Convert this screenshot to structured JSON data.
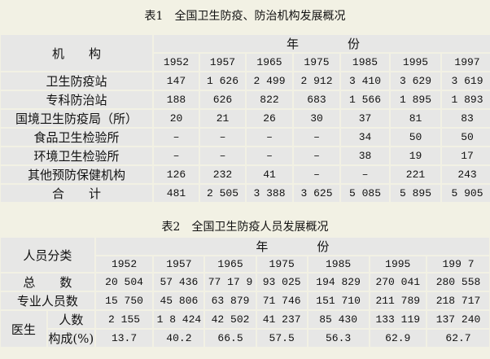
{
  "table1": {
    "title": "表1　全国卫生防疫、防治机构发展概况",
    "row_header": "机　　构",
    "year_header": "年　　　　份",
    "years": [
      "1952",
      "1957",
      "1965",
      "1975",
      "1985",
      "1995",
      "1997"
    ],
    "rows": [
      {
        "label": "卫生防疫站",
        "values": [
          "147",
          "1 626",
          "2 499",
          "2 912",
          "3 410",
          "3 629",
          "3 619"
        ]
      },
      {
        "label": "专科防治站",
        "values": [
          "188",
          "626",
          "822",
          "683",
          "1 566",
          "1 895",
          "1 893"
        ]
      },
      {
        "label": "国境卫生防疫局（所）",
        "values": [
          "20",
          "21",
          "26",
          "30",
          "37",
          "81",
          "83"
        ]
      },
      {
        "label": "食品卫生检验所",
        "values": [
          "–",
          "–",
          "–",
          "–",
          "34",
          "50",
          "50"
        ]
      },
      {
        "label": "环境卫生检验所",
        "values": [
          "–",
          "–",
          "–",
          "–",
          "38",
          "19",
          "17"
        ]
      },
      {
        "label": "其他预防保健机构",
        "values": [
          "126",
          "232",
          "41",
          "–",
          "–",
          "221",
          "243"
        ]
      },
      {
        "label": "合　　计",
        "values": [
          "481",
          "2 505",
          "3 388",
          "3 625",
          "5 085",
          "5 895",
          "5 905"
        ]
      }
    ]
  },
  "table2": {
    "title": "表2　全国卫生防疫人员发展概况",
    "row_header": "人员分类",
    "year_header": "年　　　　份",
    "years": [
      "1952",
      "1957",
      "1965",
      "1975",
      "1985",
      "1995",
      "199 7"
    ],
    "total": {
      "label": "总　　数",
      "values": [
        "20 504",
        "57 436",
        "77 17 9",
        "93 025",
        "194 829",
        "270 041",
        "280 558"
      ]
    },
    "professional": {
      "label": "专业人员数",
      "values": [
        "15 750",
        "45 806",
        "63 879",
        "71 746",
        "151 710",
        "211 789",
        "218 717"
      ]
    },
    "doctor": {
      "label": "医生",
      "count": {
        "label": "人数",
        "values": [
          "2 155",
          "1 8 424",
          "42 502",
          "41 237",
          "85 430",
          "133 119",
          "137 240"
        ]
      },
      "share": {
        "label": "构成(%)",
        "values": [
          "13.7",
          "40.2",
          "66.5",
          "57.5",
          "56.3",
          "62.9",
          "62.7"
        ]
      }
    }
  }
}
